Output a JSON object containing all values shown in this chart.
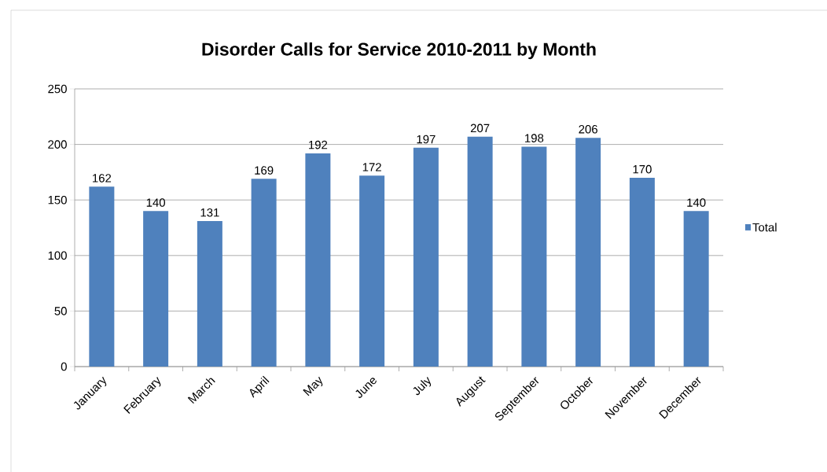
{
  "chart_data": {
    "type": "bar",
    "title": "Disorder Calls for Service 2010-2011 by Month",
    "categories": [
      "January",
      "February",
      "March",
      "April",
      "May",
      "June",
      "July",
      "August",
      "September",
      "October",
      "November",
      "December"
    ],
    "series": [
      {
        "name": "Total",
        "color": "#4f81bd",
        "values": [
          162,
          140,
          131,
          169,
          192,
          172,
          197,
          207,
          198,
          206,
          170,
          140
        ]
      }
    ],
    "ylim": [
      0,
      250
    ],
    "yticks": [
      0,
      50,
      100,
      150,
      200,
      250
    ],
    "grid": "y",
    "legend": "right",
    "data_labels": true
  }
}
